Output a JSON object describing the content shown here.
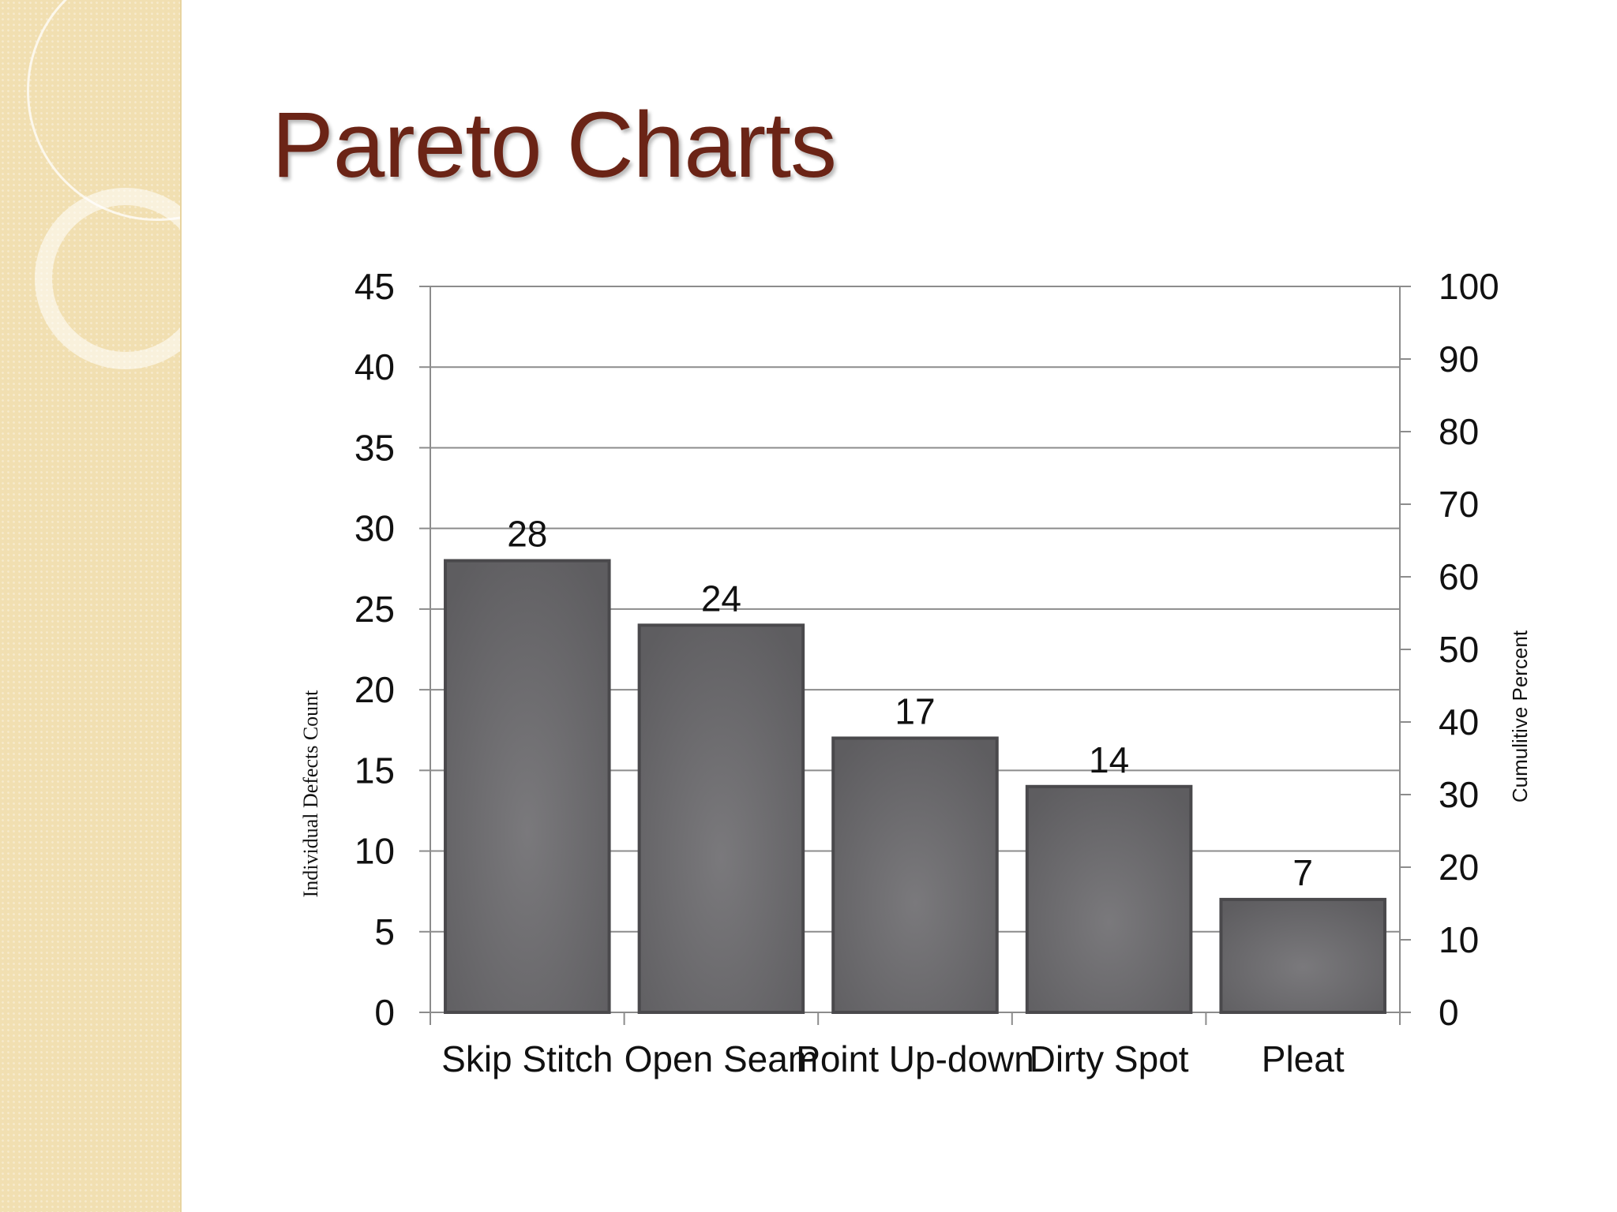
{
  "slide": {
    "title": "Pareto Charts",
    "title_color": "#6b2416",
    "sidebar_color": "#f1dfb1"
  },
  "chart_data": {
    "type": "bar",
    "categories": [
      "Skip Stitch",
      "Open Seam",
      "Point Up-down",
      "Dirty Spot",
      "Pleat"
    ],
    "values": [
      28,
      24,
      17,
      14,
      7
    ],
    "data_labels": [
      "28",
      "24",
      "17",
      "14",
      "7"
    ],
    "ylabel": "Individual Defects Count",
    "y2label": "Cumulitive Percent",
    "ylim": [
      0,
      45
    ],
    "yticks": [
      "0",
      "5",
      "10",
      "15",
      "20",
      "25",
      "30",
      "35",
      "40",
      "45"
    ],
    "y2lim": [
      0,
      100
    ],
    "y2ticks": [
      "0",
      "10",
      "20",
      "30",
      "40",
      "50",
      "60",
      "70",
      "80",
      "90",
      "100"
    ],
    "grid": true,
    "bar_color": "#5e5d60"
  }
}
